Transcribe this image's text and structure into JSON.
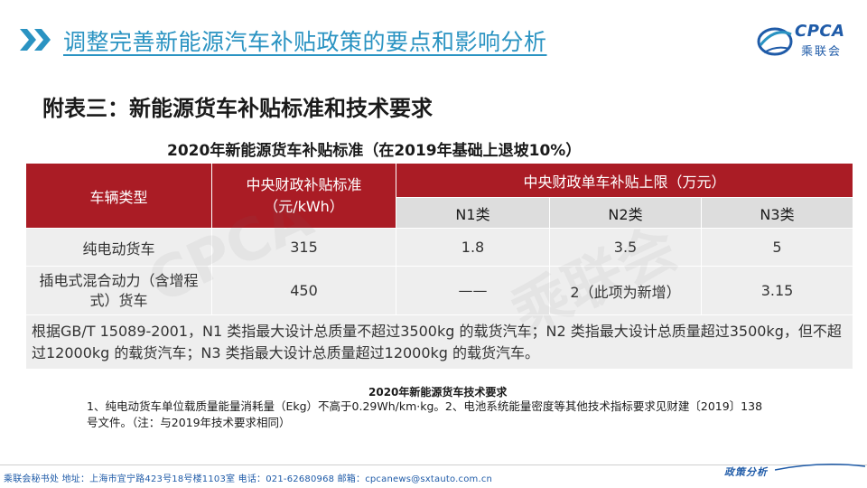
{
  "header": {
    "title": "调整完善新能源汽车补贴政策的要点和影响分析",
    "logo_text": "CPCA",
    "logo_sub": "乘联会"
  },
  "section_heading": "附表三：新能源货车补贴标准和技术要求",
  "table": {
    "caption": "2020年新能源货车补贴标准（在2019年基础上退坡10%）",
    "headers": {
      "vehicle_type": "车辆类型",
      "central_standard": "中央财政补贴标准（元/kWh）",
      "single_limit": "中央财政单车补贴上限（万元）",
      "n1": "N1类",
      "n2": "N2类",
      "n3": "N3类"
    },
    "rows": [
      {
        "type": "纯电动货车",
        "standard": "315",
        "n1": "1.8",
        "n2": "3.5",
        "n3": "5"
      },
      {
        "type": "插电式混合动力（含增程式）货车",
        "standard": "450",
        "n1": "——",
        "n2": "2（此项为新增）",
        "n3": "3.15"
      }
    ],
    "note": "根据GB/T 15089-2001，N1 类指最大设计总质量不超过3500kg 的载货汽车；N2 类指最大设计总质量超过3500kg，但不超过12000kg 的载货汽车；N3 类指最大设计总质量超过12000kg 的载货汽车。"
  },
  "requirements": {
    "title": "2020年新能源货车技术要求",
    "body": "1、纯电动货车单位载质量能量消耗量（Ekg）不高于0.29Wh/km·kg。2、电池系统能量密度等其他技术指标要求见财建〔2019〕138 号文件。（注：与2019年技术要求相同）"
  },
  "footer": {
    "contact": "乘联会秘书处   地址：上海市宜宁路423号18号楼1103室  电话：021-62680968   邮箱：cpcanews@sxtauto.com.cn",
    "tag": "政策分析"
  },
  "colors": {
    "title_blue": "#2a93c2",
    "table_header_red": "#aa1c25",
    "brand_blue": "#1f5ba8"
  }
}
